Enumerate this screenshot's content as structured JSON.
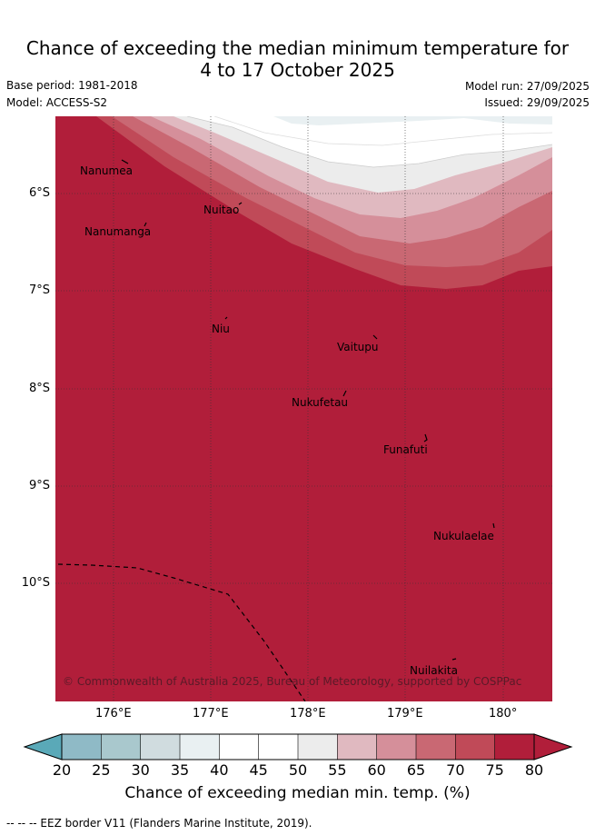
{
  "title_line1": "Chance of exceeding the median minimum temperature for",
  "title_line2": "4 to 17 October 2025",
  "base_period": "Base period: 1981-2018",
  "model": "Model: ACCESS-S2",
  "model_run": "Model run: 27/09/2025",
  "issued": "Issued: 29/09/2025",
  "x_ticks": [
    "176°E",
    "177°E",
    "178°E",
    "179°E",
    "180°"
  ],
  "y_ticks": [
    "6°S",
    "7°S",
    "8°S",
    "9°S",
    "10°S"
  ],
  "places": {
    "nanumea": "Nanumea",
    "nanumanga": "Nanumanga",
    "nuitao": "Nuitao",
    "niu": "Niu",
    "vaitupu": "Vaitupu",
    "nukufetau": "Nukufetau",
    "funafuti": "Funafuti",
    "nukulaelae": "Nukulaelae",
    "nuilakita": "Nuilakita"
  },
  "copyright": "© Commonwealth of Australia 2025, Bureau of Meteorology, supported by COSPPac",
  "colorbar": {
    "ticks": [
      "20",
      "25",
      "30",
      "35",
      "40",
      "45",
      "50",
      "55",
      "60",
      "65",
      "70",
      "75",
      "80"
    ],
    "colors": [
      "#6fb0bd",
      "#8fbac6",
      "#a9c8cd",
      "#d0dcdf",
      "#e9f0f2",
      "#ffffff",
      "#ffffff",
      "#ececec",
      "#e0b9c0",
      "#d58f9a",
      "#c96873",
      "#c04a58",
      "#b11e3a"
    ],
    "under_color": "#5aa9b8",
    "over_color": "#b11e3a",
    "label": "Chance of exceeding median min. temp. (%)"
  },
  "footer": "-- -- -- EEZ border V11 (Flanders Marine Institute, 2019)."
}
